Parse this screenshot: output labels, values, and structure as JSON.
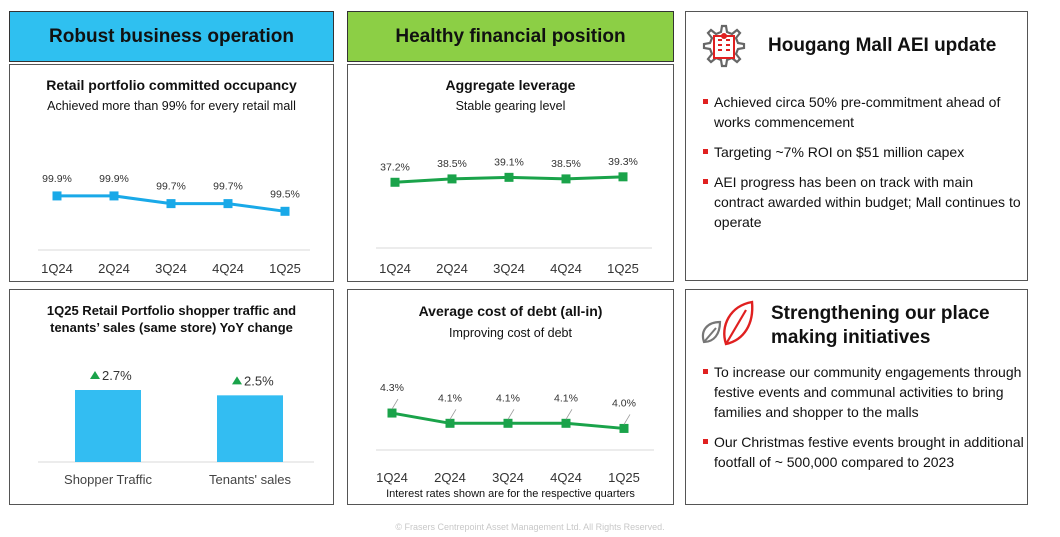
{
  "headers": {
    "left": "Robust business operation",
    "middle": "Healthy financial position"
  },
  "panels": {
    "occupancy": {
      "title": "Retail portfolio committed occupancy",
      "subtitle": "Achieved more than 99% for every retail mall"
    },
    "leverage": {
      "title": "Aggregate leverage",
      "subtitle": "Stable gearing level"
    },
    "traffic": {
      "title_line1": "1Q25 Retail Portfolio shopper traffic and",
      "title_line2": "tenants’ sales (same store) YoY change"
    },
    "cost_of_debt": {
      "title": "Average cost of debt (all-in)",
      "subtitle": "Improving cost of debt",
      "footnote": "Interest rates shown are for the respective quarters"
    }
  },
  "right": {
    "aei": {
      "title": "Hougang Mall AEI update",
      "icon": "gear-building-icon",
      "bullets": [
        "Achieved circa 50% pre-commitment ahead of works commencement",
        "Targeting ~7% ROI on $51 million capex",
        "AEI progress has been on track with main contract awarded within budget; Mall continues to operate"
      ]
    },
    "placemaking": {
      "title_line1": "Strengthening our place",
      "title_line2": "making initiatives",
      "icon": "leaves-icon",
      "bullets": [
        "To increase our community engagements through festive events and communal activities to bring families and shopper to the malls",
        "Our Christmas festive events brought in additional footfall of ~ 500,000 compared to 2023"
      ]
    }
  },
  "footer": "© Frasers Centrepoint Asset Management Ltd. All Rights Reserved.",
  "colors": {
    "blue": "#2fc0f0",
    "green": "#8ccf45",
    "line_blue": "#19a9e8",
    "line_green": "#1aa34a",
    "bar_blue": "#33bdf2",
    "up_arrow": "#1aa34a",
    "bullet_red": "#e02020"
  },
  "chart_data": [
    {
      "id": "occupancy",
      "type": "line",
      "categories": [
        "1Q24",
        "2Q24",
        "3Q24",
        "4Q24",
        "1Q25"
      ],
      "values": [
        99.9,
        99.9,
        99.7,
        99.7,
        99.5
      ],
      "labels": [
        "99.9%",
        "99.9%",
        "99.7%",
        "99.7%",
        "99.5%"
      ],
      "ylim": [
        98.0,
        100.6
      ]
    },
    {
      "id": "leverage",
      "type": "line",
      "categories": [
        "1Q24",
        "2Q24",
        "3Q24",
        "4Q24",
        "1Q25"
      ],
      "values": [
        37.2,
        38.5,
        39.1,
        38.5,
        39.3
      ],
      "labels": [
        "37.2%",
        "38.5%",
        "39.1%",
        "38.5%",
        "39.3%"
      ],
      "ylim": [
        0,
        50
      ]
    },
    {
      "id": "traffic",
      "type": "bar",
      "categories": [
        "Shopper Traffic",
        "Tenants' sales"
      ],
      "values": [
        2.7,
        2.5
      ],
      "labels": [
        "2.7%",
        "2.5%"
      ],
      "ylim": [
        0,
        3.0
      ]
    },
    {
      "id": "cost_of_debt",
      "type": "line",
      "categories": [
        "1Q24",
        "2Q24",
        "3Q24",
        "4Q24",
        "1Q25"
      ],
      "values": [
        4.3,
        4.1,
        4.1,
        4.1,
        4.0
      ],
      "labels": [
        "4.3%",
        "4.1%",
        "4.1%",
        "4.1%",
        "4.0%"
      ],
      "ylim": [
        2.8,
        5.1
      ]
    }
  ]
}
